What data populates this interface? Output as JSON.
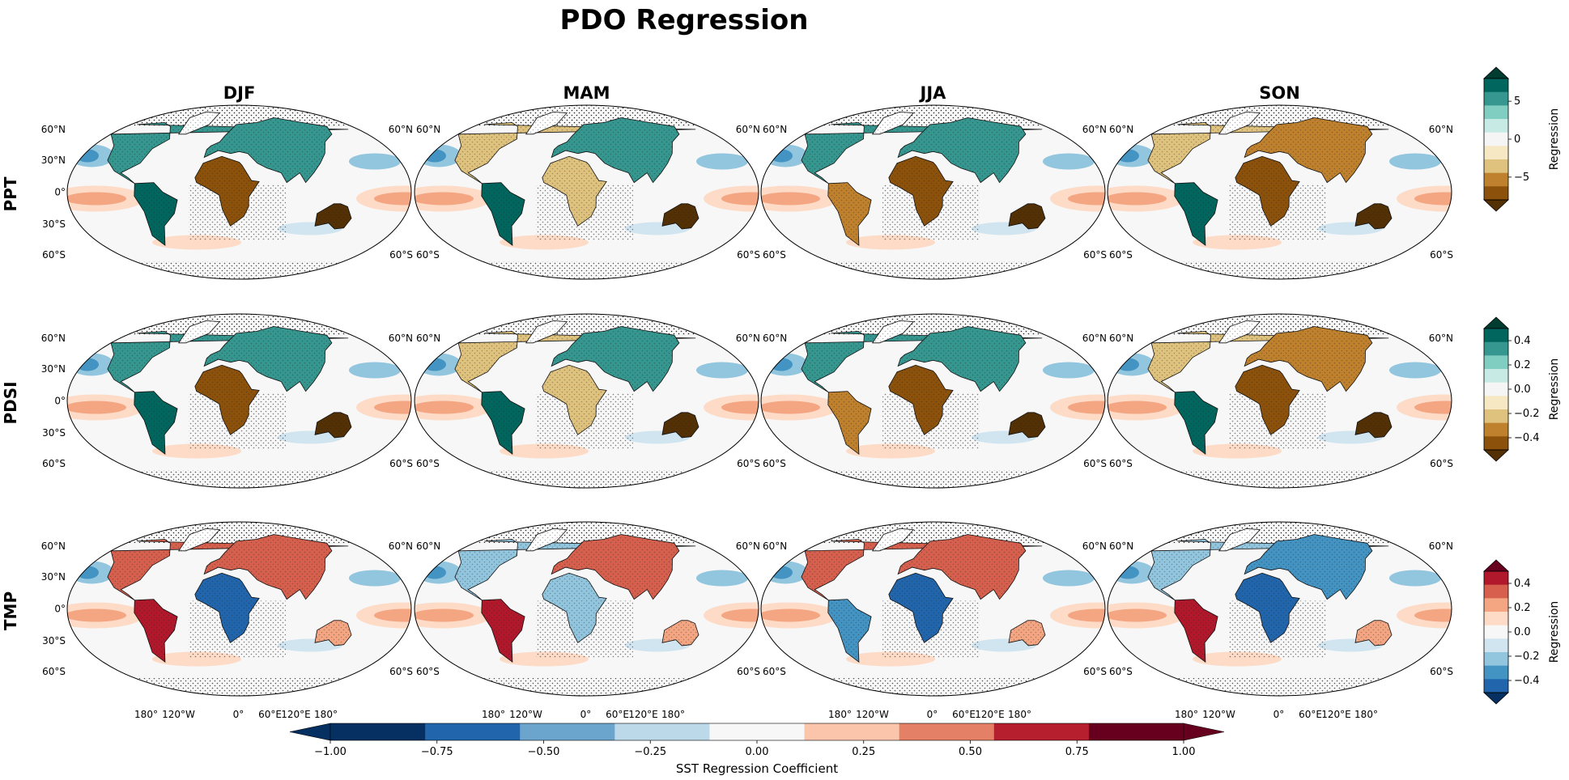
{
  "title": "PDO Regression",
  "columns": [
    "DJF",
    "MAM",
    "JJA",
    "SON"
  ],
  "rows": [
    {
      "label": "PPT",
      "cmap": "brbg",
      "ticks": [
        "5",
        "0",
        "−5"
      ],
      "tick_values": [
        5,
        0,
        -5
      ],
      "range": [
        -8,
        8
      ],
      "cbar_label": "Regression"
    },
    {
      "label": "PDSI",
      "cmap": "brbg",
      "ticks": [
        "0.4",
        "0.2",
        "0.0",
        "−0.2",
        "−0.4"
      ],
      "tick_values": [
        0.4,
        0.2,
        0.0,
        -0.2,
        -0.4
      ],
      "range": [
        -0.5,
        0.5
      ],
      "cbar_label": "Regression"
    },
    {
      "label": "TMP",
      "cmap": "rdbu",
      "ticks": [
        "0.4",
        "0.2",
        "0.0",
        "−0.2",
        "−0.4"
      ],
      "tick_values": [
        0.4,
        0.2,
        0.0,
        -0.2,
        -0.4
      ],
      "range": [
        -0.5,
        0.5
      ],
      "cbar_label": "Regression"
    }
  ],
  "lat_labels_left": [
    "60°N",
    "30°N",
    "0°",
    "30°S",
    "60°S"
  ],
  "lat_labels_right": [
    "60°N",
    "60°S"
  ],
  "lon_labels": [
    "180°",
    "120°W",
    "0°",
    "60°E",
    "120°E",
    "180°"
  ],
  "bottom_colorbar": {
    "label": "SST Regression Coefficient",
    "ticks": [
      "−1.00",
      "−0.75",
      "−0.50",
      "−0.25",
      "0.00",
      "0.25",
      "0.50",
      "0.75",
      "1.00"
    ],
    "range": [
      -1.0,
      1.0
    ]
  },
  "colors": {
    "brbg": [
      "#543005",
      "#8c510a",
      "#bf812d",
      "#dfc27d",
      "#f6e8c3",
      "#f5f5f5",
      "#c7eae5",
      "#80cdc1",
      "#35978f",
      "#01665e",
      "#003c30"
    ],
    "rdbu": [
      "#053061",
      "#2166ac",
      "#4393c3",
      "#92c5de",
      "#d1e5f0",
      "#f7f7f7",
      "#fddbc7",
      "#f4a582",
      "#d6604d",
      "#b2182b",
      "#67001f"
    ],
    "sst": [
      "#053061",
      "#2166ac",
      "#6ba5cd",
      "#bcd9ea",
      "#f7f7f7",
      "#fbc5ab",
      "#e48066",
      "#b51f2e",
      "#67001f"
    ]
  }
}
